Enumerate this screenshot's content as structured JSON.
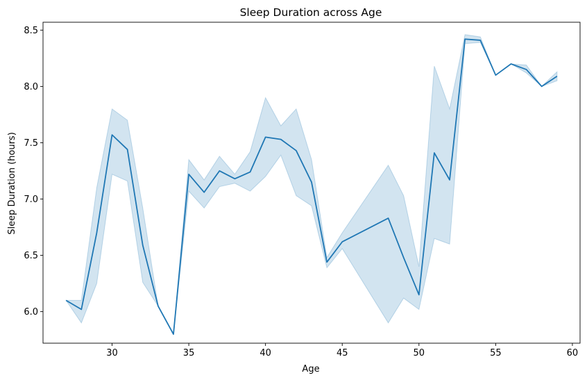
{
  "chart_data": {
    "type": "line",
    "title": "Sleep Duration across Age",
    "xlabel": "Age",
    "ylabel": "Sleep Duration (hours)",
    "xlim": [
      25.5,
      60.5
    ],
    "ylim": [
      5.72,
      8.57
    ],
    "xticks": [
      30,
      35,
      40,
      45,
      50,
      55,
      60
    ],
    "yticks": [
      6.0,
      6.5,
      7.0,
      7.5,
      8.0,
      8.5
    ],
    "grid": false,
    "legend": "none",
    "line_color": "#1f77b4",
    "band_color": "#1f77b4",
    "band_opacity": 0.2,
    "series": [
      {
        "x": [
          27,
          28,
          29,
          30,
          31,
          32,
          33,
          34,
          35,
          36,
          37,
          38,
          39,
          40,
          41,
          42,
          43,
          44,
          45,
          48,
          49,
          50,
          51,
          52,
          53,
          54,
          55,
          56,
          57,
          58,
          59
        ],
        "y": [
          6.1,
          6.02,
          6.7,
          7.57,
          7.44,
          6.59,
          6.05,
          5.8,
          7.22,
          7.06,
          7.25,
          7.18,
          7.24,
          7.55,
          7.53,
          7.43,
          7.15,
          6.44,
          6.62,
          6.83,
          6.48,
          6.15,
          7.41,
          7.17,
          8.42,
          8.41,
          8.1,
          8.2,
          8.15,
          8.0,
          8.09
        ],
        "ci_lower": [
          6.1,
          5.9,
          6.25,
          7.22,
          7.16,
          6.26,
          6.05,
          5.8,
          7.07,
          6.92,
          7.11,
          7.14,
          7.07,
          7.2,
          7.39,
          7.03,
          6.94,
          6.39,
          6.56,
          5.9,
          6.12,
          6.02,
          6.65,
          6.6,
          8.38,
          8.39,
          8.1,
          8.2,
          8.12,
          8.0,
          8.05
        ],
        "ci_upper": [
          6.1,
          6.1,
          7.1,
          7.8,
          7.7,
          6.92,
          6.05,
          5.8,
          7.35,
          7.17,
          7.38,
          7.22,
          7.42,
          7.9,
          7.65,
          7.8,
          7.35,
          6.48,
          6.7,
          7.3,
          7.03,
          6.4,
          8.18,
          7.8,
          8.46,
          8.44,
          8.1,
          8.2,
          8.19,
          8.0,
          8.13
        ]
      }
    ]
  }
}
